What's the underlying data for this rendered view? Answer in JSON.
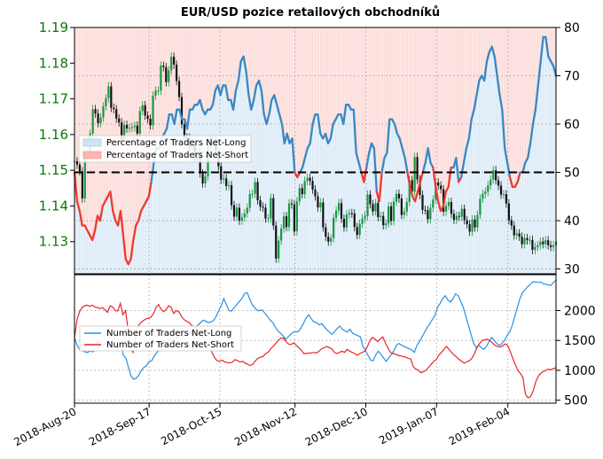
{
  "chart_data": [
    {
      "type": "line",
      "panel": "top",
      "title": "EUR/USD pozice retailových obchodníků",
      "left_axis": {
        "ylim": [
          1.121,
          1.19
        ],
        "ticks": [
          "1.13",
          "1.14",
          "1.15",
          "1.16",
          "1.17",
          "1.18",
          "1.19"
        ]
      },
      "right_axis": {
        "ylim": [
          29,
          80
        ],
        "ticks": [
          "30",
          "40",
          "50",
          "60",
          "70",
          "80"
        ]
      },
      "reference_line": 50,
      "legend_position": "center-left",
      "series": [
        {
          "name": "Percentage of Traders Net-Long",
          "color": "#a9cdea",
          "values": [
            50,
            44,
            42,
            39,
            39,
            38,
            37,
            36,
            38,
            41,
            40,
            43,
            44,
            45,
            46,
            42,
            40,
            39,
            42,
            37,
            32,
            31,
            32,
            36,
            39,
            40,
            42,
            43,
            44,
            45,
            48,
            52,
            55,
            55,
            57,
            58,
            59,
            62,
            62,
            60,
            63,
            63,
            61,
            61,
            59,
            63,
            63,
            64,
            64,
            65,
            63,
            62,
            63,
            63,
            64,
            67,
            68,
            66,
            68,
            68,
            65,
            65,
            63,
            67,
            69,
            73,
            74,
            71,
            66,
            63,
            65,
            68,
            69,
            67,
            62,
            60,
            62,
            65,
            66,
            64,
            62,
            60,
            56,
            58,
            56,
            57,
            50,
            49,
            50,
            51,
            53,
            55,
            56,
            60,
            62,
            62,
            58,
            57,
            58,
            56,
            57,
            60,
            61,
            62,
            62,
            60,
            64,
            64,
            63,
            63,
            54,
            52,
            50,
            48,
            51,
            54,
            56,
            55,
            46,
            44,
            50,
            53,
            54,
            61,
            61,
            60,
            58,
            57,
            55,
            53,
            50,
            47,
            45,
            44,
            46,
            48,
            50,
            52,
            55,
            52,
            51,
            47,
            44,
            42,
            43,
            46,
            47,
            51,
            51,
            53,
            48,
            49,
            52,
            55,
            57,
            61,
            63,
            66,
            69,
            70,
            69,
            73,
            75,
            76,
            74,
            70,
            66,
            63,
            55,
            52,
            49,
            47,
            47,
            48,
            50,
            50,
            52,
            53,
            56,
            60,
            63,
            68,
            73,
            78,
            78,
            74,
            73,
            72,
            70
          ]
        }
      ],
      "price": {
        "name": "EUR/USD",
        "colors": {
          "up": "#1a9641",
          "down": "#111111"
        },
        "values": [
          1.1525,
          1.1516,
          1.1497,
          1.1421,
          1.1543,
          1.1546,
          1.1603,
          1.1671,
          1.1659,
          1.1632,
          1.1648,
          1.1679,
          1.1702,
          1.1735,
          1.1675,
          1.1671,
          1.1645,
          1.1634,
          1.1587,
          1.1627,
          1.1617,
          1.1619,
          1.1621,
          1.1625,
          1.1603,
          1.1666,
          1.1682,
          1.1653,
          1.1644,
          1.1626,
          1.1709,
          1.1723,
          1.1723,
          1.1793,
          1.1789,
          1.1747,
          1.178,
          1.1818,
          1.1796,
          1.175,
          1.1705,
          1.1629,
          1.1592,
          1.1591,
          1.1565,
          1.1575,
          1.1536,
          1.1551,
          1.1491,
          1.1463,
          1.1483,
          1.1583,
          1.1569,
          1.1585,
          1.1554,
          1.1511,
          1.1474,
          1.1477,
          1.1456,
          1.1458,
          1.1402,
          1.137,
          1.1395,
          1.1359,
          1.1368,
          1.1379,
          1.1395,
          1.1433,
          1.1434,
          1.1467,
          1.1416,
          1.1398,
          1.1395,
          1.1365,
          1.1365,
          1.1422,
          1.1345,
          1.1253,
          1.1303,
          1.1337,
          1.1371,
          1.1341,
          1.1407,
          1.1404,
          1.1329,
          1.1413,
          1.145,
          1.1433,
          1.147,
          1.1479,
          1.147,
          1.1446,
          1.1427,
          1.1396,
          1.141,
          1.134,
          1.1314,
          1.13,
          1.131,
          1.1367,
          1.1387,
          1.1408,
          1.1364,
          1.134,
          1.1376,
          1.138,
          1.1379,
          1.1341,
          1.1319,
          1.135,
          1.1365,
          1.1372,
          1.1432,
          1.1405,
          1.1385,
          1.1408,
          1.1369,
          1.1372,
          1.1346,
          1.1351,
          1.1399,
          1.1358,
          1.1412,
          1.1434,
          1.1421,
          1.1375,
          1.1384,
          1.1411,
          1.1472,
          1.144,
          1.1537,
          1.1474,
          1.1431,
          1.1389,
          1.1388,
          1.1363,
          1.1395,
          1.1418,
          1.1466,
          1.1457,
          1.1447,
          1.1384,
          1.14,
          1.1411,
          1.1378,
          1.1361,
          1.1372,
          1.137,
          1.1392,
          1.136,
          1.1349,
          1.1328,
          1.1362,
          1.134,
          1.1375,
          1.142,
          1.1434,
          1.144,
          1.1458,
          1.1474,
          1.15,
          1.1472,
          1.1457,
          1.1432,
          1.1433,
          1.1407,
          1.136,
          1.1345,
          1.1318,
          1.1323,
          1.1314,
          1.1293,
          1.131,
          1.1304,
          1.1305,
          1.1277,
          1.1285,
          1.129,
          1.13,
          1.1293,
          1.1304,
          1.129,
          1.1285,
          1.129,
          1.13
        ]
      }
    },
    {
      "type": "line",
      "panel": "bottom",
      "x_ticks": [
        "2018-Aug-20",
        "2018-Sep-17",
        "2018-Oct-15",
        "2018-Nov-12",
        "2018-Dec-10",
        "2019-Jan-07",
        "2019-Feb-04"
      ],
      "right_axis": {
        "ylim": [
          450,
          2600
        ],
        "ticks": [
          "500",
          "1000",
          "1500",
          "2000"
        ]
      },
      "legend_position": "center-left",
      "series": [
        {
          "name": "Number of Traders Net-Long",
          "color": "#2b8fe0",
          "values": [
            1550,
            1420,
            1350,
            1330,
            1310,
            1300,
            1320,
            1310,
            1330,
            1360,
            1390,
            1420,
            1430,
            1470,
            1420,
            1370,
            1400,
            1360,
            1430,
            1250,
            1200,
            1040,
            900,
            850,
            870,
            920,
            1000,
            1050,
            1080,
            1150,
            1160,
            1240,
            1300,
            1340,
            1380,
            1400,
            1450,
            1520,
            1530,
            1500,
            1550,
            1580,
            1570,
            1600,
            1610,
            1640,
            1660,
            1720,
            1760,
            1800,
            1840,
            1820,
            1800,
            1810,
            1830,
            1900,
            2000,
            2080,
            2200,
            2100,
            2000,
            1990,
            2050,
            2100,
            2150,
            2200,
            2280,
            2300,
            2200,
            2100,
            2050,
            2000,
            2000,
            2010,
            1950,
            1900,
            1840,
            1800,
            1720,
            1660,
            1620,
            1580,
            1520,
            1560,
            1600,
            1640,
            1640,
            1650,
            1710,
            1790,
            1880,
            1930,
            1860,
            1810,
            1800,
            1760,
            1780,
            1730,
            1680,
            1640,
            1600,
            1650,
            1700,
            1740,
            1690,
            1660,
            1640,
            1690,
            1620,
            1600,
            1580,
            1560,
            1400,
            1330,
            1250,
            1170,
            1160,
            1260,
            1320,
            1270,
            1210,
            1150,
            1210,
            1260,
            1330,
            1420,
            1450,
            1420,
            1400,
            1380,
            1360,
            1340,
            1300,
            1420,
            1480,
            1560,
            1640,
            1720,
            1780,
            1850,
            1920,
            2050,
            2120,
            2200,
            2250,
            2180,
            2140,
            2200,
            2280,
            2250,
            2150,
            2050,
            1900,
            1750,
            1600,
            1450,
            1380,
            1420,
            1380,
            1350,
            1400,
            1480,
            1550,
            1500,
            1450,
            1420,
            1450,
            1500,
            1580,
            1640,
            1750,
            1900,
            2050,
            2200,
            2300,
            2350,
            2400,
            2440,
            2480,
            2480,
            2470,
            2480,
            2450,
            2440,
            2430,
            2420,
            2470,
            2510
          ]
        },
        {
          "name": "Number of Traders Net-Short",
          "color": "#e8262a",
          "values": [
            1550,
            1850,
            1980,
            2050,
            2080,
            2090,
            2070,
            2090,
            2060,
            2050,
            2030,
            2050,
            2010,
            1970,
            2080,
            2060,
            2000,
            1990,
            2120,
            1930,
            2000,
            1700,
            1350,
            1300,
            1600,
            1740,
            1800,
            1830,
            1860,
            1870,
            1890,
            1950,
            2050,
            2100,
            2020,
            1980,
            2020,
            2080,
            2050,
            1950,
            2000,
            1980,
            1900,
            1850,
            1820,
            1800,
            1750,
            1730,
            1700,
            1640,
            1590,
            1480,
            1430,
            1390,
            1300,
            1210,
            1160,
            1150,
            1170,
            1140,
            1130,
            1120,
            1140,
            1180,
            1160,
            1140,
            1150,
            1120,
            1100,
            1080,
            1100,
            1160,
            1200,
            1220,
            1230,
            1280,
            1300,
            1360,
            1400,
            1450,
            1500,
            1540,
            1540,
            1480,
            1440,
            1430,
            1460,
            1420,
            1380,
            1340,
            1280,
            1280,
            1290,
            1290,
            1300,
            1290,
            1320,
            1360,
            1380,
            1400,
            1380,
            1360,
            1300,
            1280,
            1300,
            1320,
            1300,
            1350,
            1320,
            1300,
            1280,
            1250,
            1280,
            1300,
            1320,
            1400,
            1500,
            1550,
            1520,
            1480,
            1520,
            1560,
            1460,
            1380,
            1300,
            1280,
            1270,
            1250,
            1240,
            1230,
            1220,
            1200,
            1190,
            1060,
            1020,
            1000,
            960,
            980,
            1000,
            1050,
            1100,
            1150,
            1180,
            1250,
            1300,
            1350,
            1400,
            1350,
            1300,
            1260,
            1220,
            1180,
            1150,
            1120,
            1140,
            1160,
            1200,
            1280,
            1380,
            1450,
            1500,
            1510,
            1520,
            1500,
            1460,
            1420,
            1400,
            1390,
            1410,
            1440,
            1420,
            1320,
            1200,
            1100,
            1000,
            950,
            880,
            600,
            540,
            560,
            650,
            800,
            900,
            950,
            980,
            1000,
            1020,
            1010,
            1030,
            1040
          ]
        }
      ]
    }
  ]
}
